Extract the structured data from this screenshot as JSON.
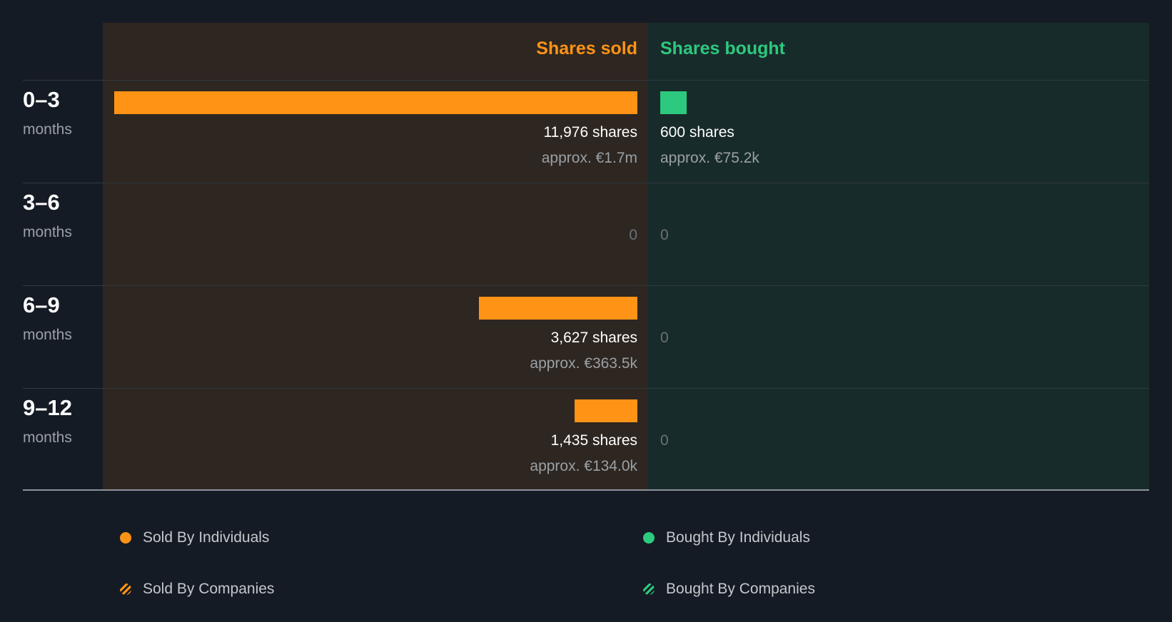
{
  "colors": {
    "sold": "#ff9316",
    "bought": "#2dc97e",
    "sold_panel": "#2e2620",
    "bought_panel": "#182b2b",
    "background": "#151b24"
  },
  "chart_data": {
    "type": "bar",
    "orientation": "horizontal-diverging",
    "headers": {
      "sold": "Shares sold",
      "bought": "Shares bought"
    },
    "unit_label": "months",
    "max_value": 11976,
    "rows": [
      {
        "range": "0–3",
        "sold": 11976,
        "sold_label": "11,976 shares",
        "sold_approx": "approx. €1.7m",
        "bought": 600,
        "bought_label": "600 shares",
        "bought_approx": "approx. €75.2k"
      },
      {
        "range": "3–6",
        "sold": 0,
        "sold_label": "0",
        "sold_approx": "",
        "bought": 0,
        "bought_label": "0",
        "bought_approx": ""
      },
      {
        "range": "6–9",
        "sold": 3627,
        "sold_label": "3,627 shares",
        "sold_approx": "approx. €363.5k",
        "bought": 0,
        "bought_label": "0",
        "bought_approx": ""
      },
      {
        "range": "9–12",
        "sold": 1435,
        "sold_label": "1,435 shares",
        "sold_approx": "approx. €134.0k",
        "bought": 0,
        "bought_label": "0",
        "bought_approx": ""
      }
    ],
    "legend": [
      {
        "label": "Sold By Individuals",
        "color": "#ff9316",
        "pattern": "solid"
      },
      {
        "label": "Bought By Individuals",
        "color": "#2dc97e",
        "pattern": "solid"
      },
      {
        "label": "Sold By Companies",
        "color": "#ff9316",
        "pattern": "hatched"
      },
      {
        "label": "Bought By Companies",
        "color": "#2dc97e",
        "pattern": "hatched"
      }
    ]
  }
}
